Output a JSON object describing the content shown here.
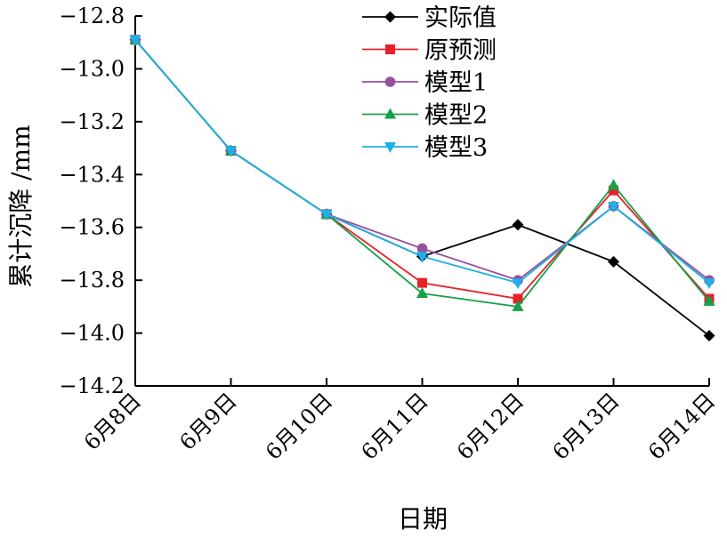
{
  "chart_data": {
    "type": "line",
    "title": "",
    "xlabel": "日期",
    "ylabel": "累计沉降 /mm",
    "categories": [
      "6月8日",
      "6月9日",
      "6月10日",
      "6月11日",
      "6月12日",
      "6月13日",
      "6月14日"
    ],
    "ylim": [
      -14.2,
      -12.8
    ],
    "yticks": [
      -12.8,
      -13.0,
      -13.2,
      -13.4,
      -13.6,
      -13.8,
      -14.0,
      -14.2
    ],
    "ytick_labels": [
      "−12.8",
      "−13.0",
      "−13.2",
      "−13.4",
      "−13.6",
      "−13.8",
      "−14.0",
      "−14.2"
    ],
    "grid": false,
    "legend_position": "top-right",
    "series": [
      {
        "name": "实际值",
        "color": "#000000",
        "marker": "diamond",
        "values": [
          -12.89,
          -13.31,
          -13.55,
          -13.71,
          -13.59,
          -13.73,
          -14.01
        ]
      },
      {
        "name": "原预测",
        "color": "#e8202a",
        "marker": "square",
        "values": [
          -12.89,
          -13.31,
          -13.55,
          -13.81,
          -13.87,
          -13.46,
          -13.87
        ]
      },
      {
        "name": "模型1",
        "color": "#9a4f9c",
        "marker": "circle",
        "values": [
          -12.89,
          -13.31,
          -13.55,
          -13.68,
          -13.8,
          -13.52,
          -13.8
        ]
      },
      {
        "name": "模型2",
        "color": "#16a04a",
        "marker": "triangle-up",
        "values": [
          -12.89,
          -13.31,
          -13.55,
          -13.85,
          -13.9,
          -13.44,
          -13.88
        ]
      },
      {
        "name": "模型3",
        "color": "#1bb1e8",
        "marker": "triangle-down",
        "values": [
          -12.89,
          -13.31,
          -13.55,
          -13.71,
          -13.81,
          -13.52,
          -13.81
        ]
      }
    ]
  }
}
